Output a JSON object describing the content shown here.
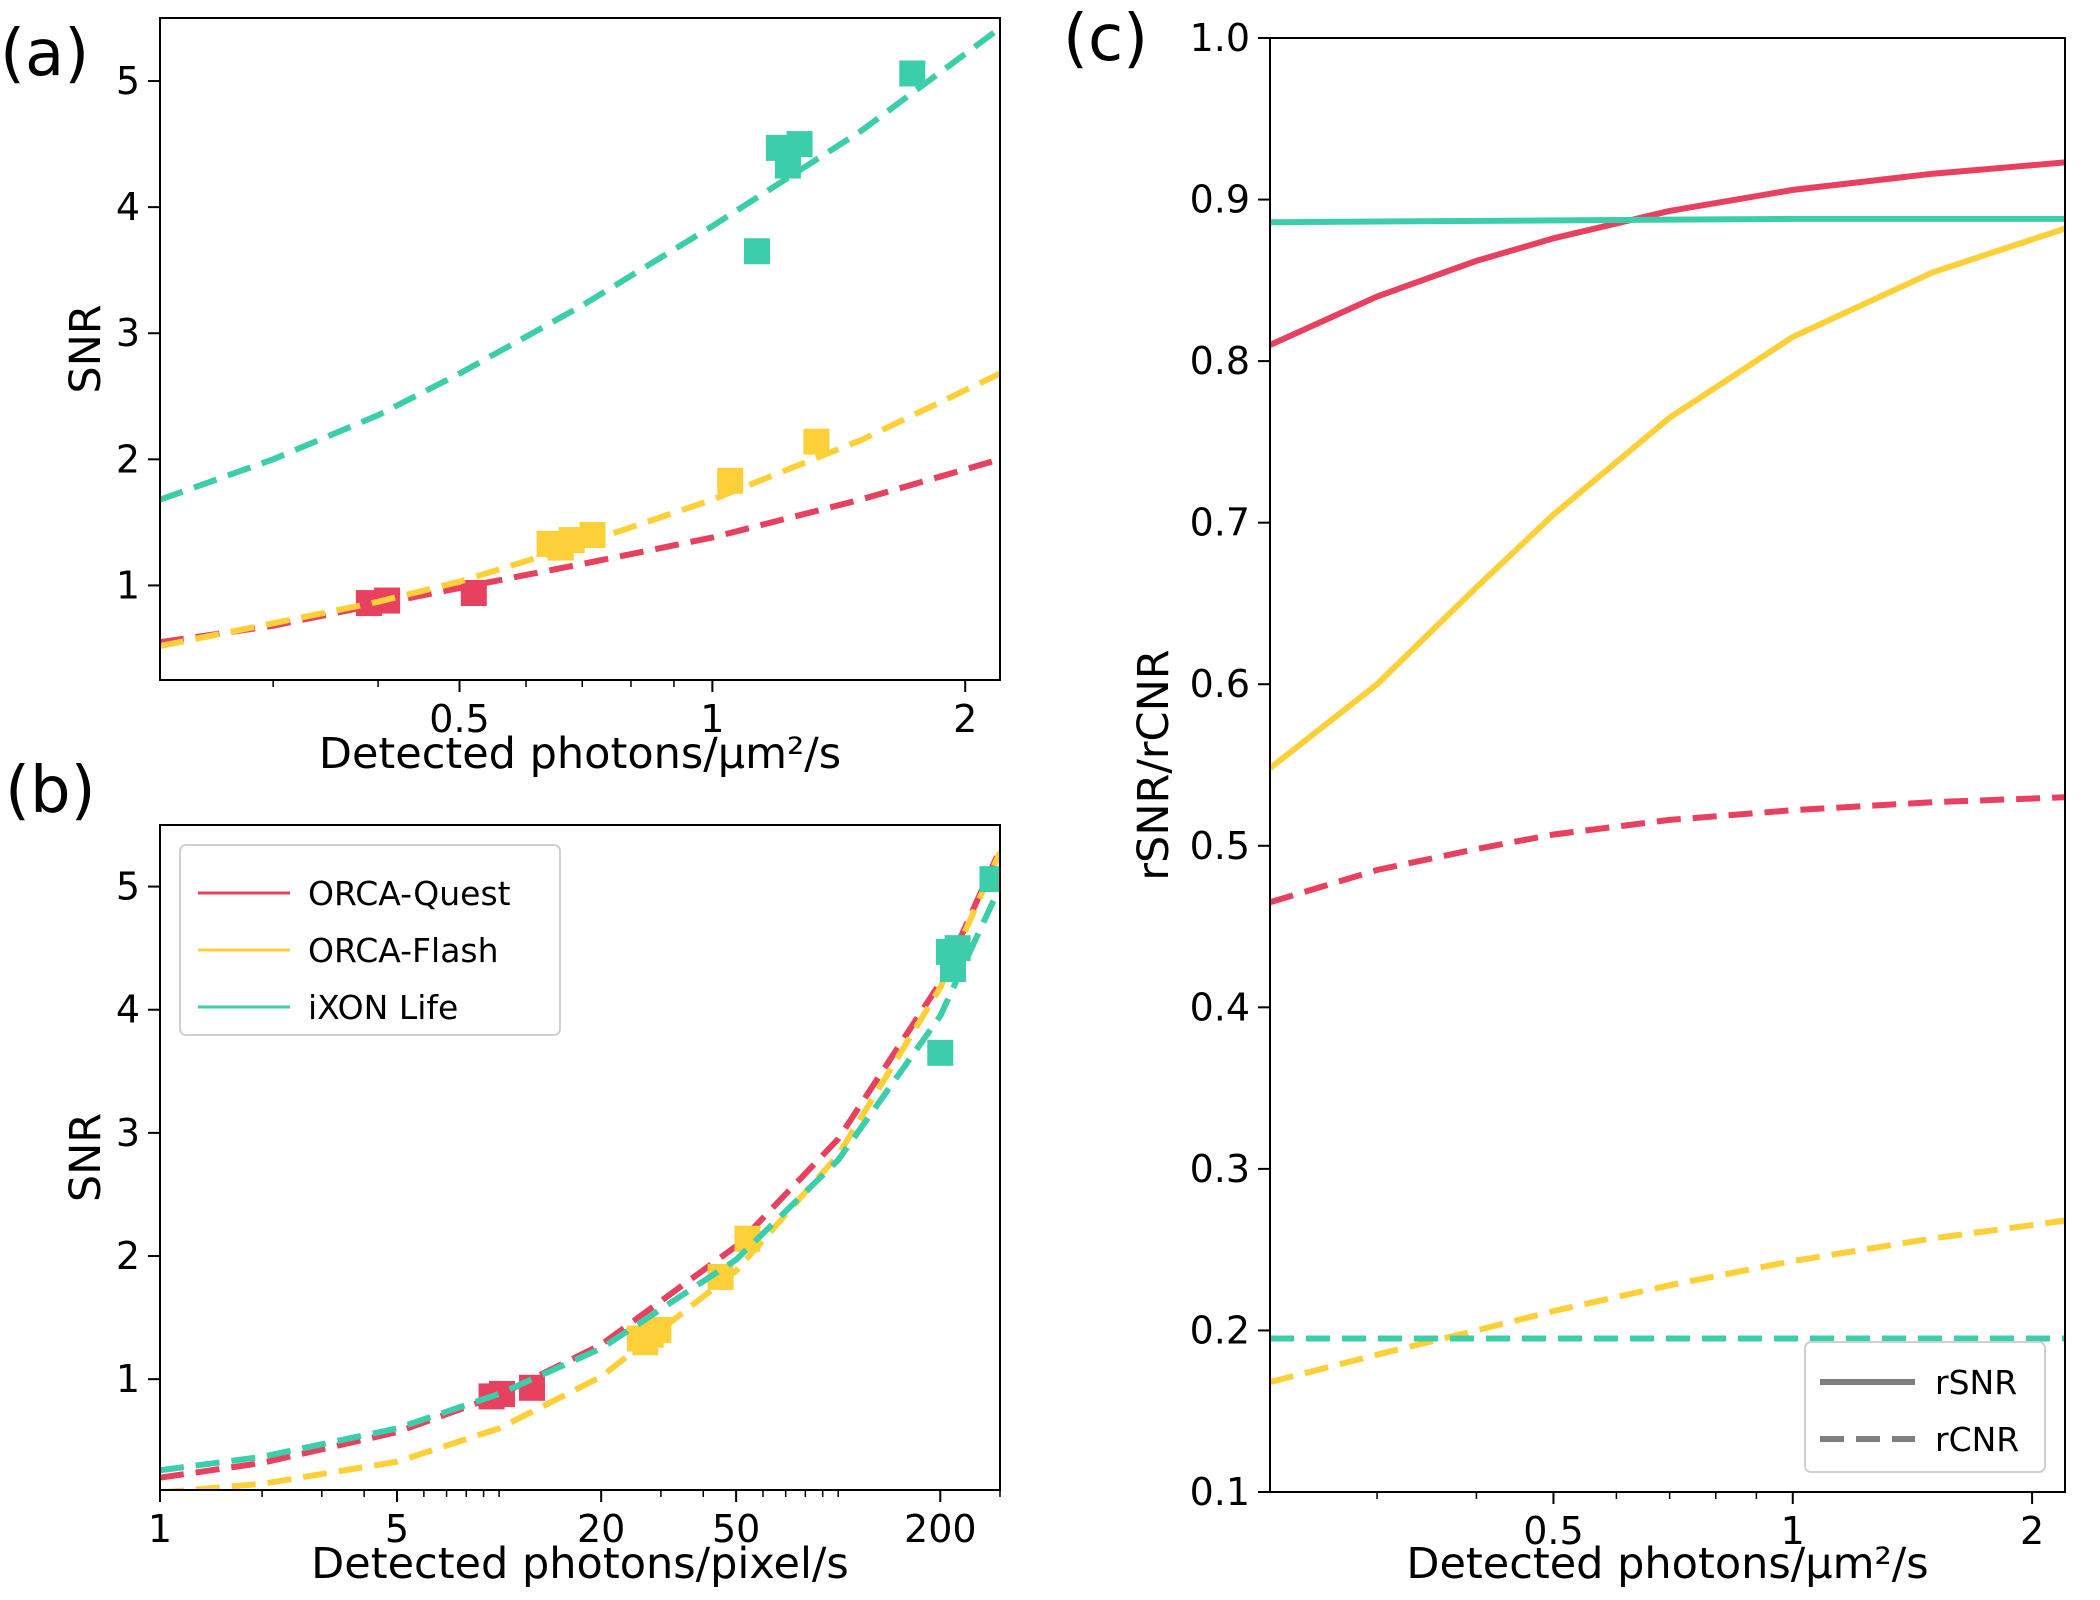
{
  "colors": {
    "quest": "#e8405f",
    "flash": "#fdd039",
    "ixon": "#3cceaa",
    "grey": "#7f7f7f"
  },
  "chart_data": [
    {
      "id": "a",
      "panel_label": "(a)",
      "type": "scatter",
      "xscale": "log",
      "xlim": [
        0.22,
        2.2
      ],
      "ylim": [
        0.25,
        5.5
      ],
      "xticks": [
        0.5,
        1,
        2
      ],
      "xtick_labels": [
        "0.5",
        "1",
        "2"
      ],
      "yticks": [
        1,
        2,
        3,
        4,
        5
      ],
      "ytick_labels": [
        "1",
        "2",
        "3",
        "4",
        "5"
      ],
      "xlabel": "Detected photons/μm²/s",
      "ylabel": "SNR",
      "series": [
        {
          "name": "ORCA-Quest",
          "color_key": "quest",
          "points": [
            [
              0.39,
              0.86
            ],
            [
              0.41,
              0.88
            ],
            [
              0.52,
              0.94
            ]
          ],
          "fit": [
            [
              0.22,
              0.55
            ],
            [
              0.3,
              0.68
            ],
            [
              0.4,
              0.85
            ],
            [
              0.5,
              0.98
            ],
            [
              0.7,
              1.17
            ],
            [
              1.0,
              1.38
            ],
            [
              1.5,
              1.68
            ],
            [
              2.2,
              2.0
            ]
          ]
        },
        {
          "name": "ORCA-Flash",
          "color_key": "flash",
          "points": [
            [
              0.64,
              1.33
            ],
            [
              0.66,
              1.3
            ],
            [
              0.68,
              1.36
            ],
            [
              0.72,
              1.4
            ],
            [
              1.05,
              1.83
            ],
            [
              1.33,
              2.14
            ]
          ],
          "fit": [
            [
              0.22,
              0.52
            ],
            [
              0.3,
              0.7
            ],
            [
              0.4,
              0.87
            ],
            [
              0.5,
              1.03
            ],
            [
              0.7,
              1.33
            ],
            [
              1.0,
              1.68
            ],
            [
              1.5,
              2.15
            ],
            [
              2.2,
              2.68
            ]
          ]
        },
        {
          "name": "iXON Life",
          "color_key": "ixon",
          "points": [
            [
              1.13,
              3.65
            ],
            [
              1.2,
              4.47
            ],
            [
              1.23,
              4.33
            ],
            [
              1.27,
              4.5
            ],
            [
              1.73,
              5.06
            ]
          ],
          "fit": [
            [
              0.22,
              1.68
            ],
            [
              0.3,
              2.0
            ],
            [
              0.4,
              2.35
            ],
            [
              0.5,
              2.68
            ],
            [
              0.7,
              3.22
            ],
            [
              1.0,
              3.85
            ],
            [
              1.5,
              4.6
            ],
            [
              2.2,
              5.42
            ]
          ]
        }
      ]
    },
    {
      "id": "b",
      "panel_label": "(b)",
      "type": "scatter",
      "xscale": "log",
      "xlim": [
        1,
        300
      ],
      "ylim": [
        0.1,
        5.5
      ],
      "xticks": [
        1,
        5,
        20,
        50,
        200
      ],
      "xtick_labels": [
        "1",
        "5",
        "20",
        "50",
        "200"
      ],
      "yticks": [
        1,
        2,
        3,
        4,
        5
      ],
      "ytick_labels": [
        "1",
        "2",
        "3",
        "4",
        "5"
      ],
      "xlabel": "Detected photons/pixel/s",
      "ylabel": "SNR",
      "legend": {
        "position": "upper-left",
        "entries": [
          "ORCA-Quest",
          "ORCA-Flash",
          "iXON Life"
        ]
      },
      "series": [
        {
          "name": "ORCA-Quest",
          "color_key": "quest",
          "points": [
            [
              9.5,
              0.86
            ],
            [
              10.2,
              0.88
            ],
            [
              12.5,
              0.93
            ]
          ],
          "fit": [
            [
              1,
              0.2
            ],
            [
              2,
              0.32
            ],
            [
              5,
              0.57
            ],
            [
              10,
              0.87
            ],
            [
              20,
              1.28
            ],
            [
              50,
              2.08
            ],
            [
              100,
              2.95
            ],
            [
              200,
              4.22
            ],
            [
              300,
              5.3
            ]
          ]
        },
        {
          "name": "ORCA-Flash",
          "color_key": "flash",
          "points": [
            [
              26,
              1.33
            ],
            [
              27,
              1.3
            ],
            [
              28,
              1.36
            ],
            [
              29.5,
              1.4
            ],
            [
              45,
              1.83
            ],
            [
              54,
              2.14
            ]
          ],
          "fit": [
            [
              1,
              0.08
            ],
            [
              2,
              0.15
            ],
            [
              5,
              0.33
            ],
            [
              10,
              0.6
            ],
            [
              20,
              1.02
            ],
            [
              50,
              1.88
            ],
            [
              100,
              2.82
            ],
            [
              200,
              4.18
            ],
            [
              300,
              5.28
            ]
          ]
        },
        {
          "name": "iXON Life",
          "color_key": "ixon",
          "points": [
            [
              200,
              3.65
            ],
            [
              212,
              4.47
            ],
            [
              218,
              4.33
            ],
            [
              225,
              4.5
            ],
            [
              285,
              5.06
            ]
          ],
          "fit": [
            [
              1,
              0.26
            ],
            [
              2,
              0.37
            ],
            [
              5,
              0.6
            ],
            [
              10,
              0.88
            ],
            [
              20,
              1.25
            ],
            [
              50,
              1.97
            ],
            [
              100,
              2.78
            ],
            [
              200,
              3.95
            ],
            [
              300,
              5.0
            ]
          ]
        }
      ]
    },
    {
      "id": "c",
      "panel_label": "(c)",
      "type": "line",
      "xscale": "log",
      "xlim": [
        0.22,
        2.2
      ],
      "ylim": [
        0.1,
        1.0
      ],
      "xticks": [
        0.5,
        1,
        2
      ],
      "xtick_labels": [
        "0.5",
        "1",
        "2"
      ],
      "yticks": [
        0.1,
        0.2,
        0.3,
        0.4,
        0.5,
        0.6,
        0.7,
        0.8,
        0.9,
        1.0
      ],
      "ytick_labels": [
        "0.1",
        "0.2",
        "0.3",
        "0.4",
        "0.5",
        "0.6",
        "0.7",
        "0.8",
        "0.9",
        "1.0"
      ],
      "xlabel": "Detected photons/μm²/s",
      "ylabel": "rSNR/rCNR",
      "legend": {
        "position": "lower-right",
        "entries": [
          "rSNR",
          "rCNR"
        ]
      },
      "series": [
        {
          "name": "ORCA-Quest rSNR",
          "color_key": "quest",
          "style": "solid",
          "points": [
            [
              0.22,
              0.81
            ],
            [
              0.3,
              0.84
            ],
            [
              0.4,
              0.862
            ],
            [
              0.5,
              0.876
            ],
            [
              0.7,
              0.893
            ],
            [
              1.0,
              0.906
            ],
            [
              1.5,
              0.916
            ],
            [
              2.2,
              0.923
            ]
          ]
        },
        {
          "name": "ORCA-Flash rSNR",
          "color_key": "flash",
          "style": "solid",
          "points": [
            [
              0.22,
              0.548
            ],
            [
              0.3,
              0.6
            ],
            [
              0.4,
              0.66
            ],
            [
              0.5,
              0.705
            ],
            [
              0.7,
              0.765
            ],
            [
              1.0,
              0.815
            ],
            [
              1.5,
              0.855
            ],
            [
              2.2,
              0.882
            ]
          ]
        },
        {
          "name": "iXON Life rSNR",
          "color_key": "ixon",
          "style": "solid",
          "points": [
            [
              0.22,
              0.886
            ],
            [
              1.0,
              0.888
            ],
            [
              2.2,
              0.888
            ]
          ]
        },
        {
          "name": "ORCA-Quest rCNR",
          "color_key": "quest",
          "style": "dashed",
          "points": [
            [
              0.22,
              0.465
            ],
            [
              0.3,
              0.485
            ],
            [
              0.4,
              0.498
            ],
            [
              0.5,
              0.507
            ],
            [
              0.7,
              0.516
            ],
            [
              1.0,
              0.522
            ],
            [
              1.5,
              0.527
            ],
            [
              2.2,
              0.53
            ]
          ]
        },
        {
          "name": "ORCA-Flash rCNR",
          "color_key": "flash",
          "style": "dashed",
          "points": [
            [
              0.22,
              0.168
            ],
            [
              0.3,
              0.185
            ],
            [
              0.4,
              0.2
            ],
            [
              0.5,
              0.212
            ],
            [
              0.7,
              0.228
            ],
            [
              1.0,
              0.243
            ],
            [
              1.5,
              0.257
            ],
            [
              2.2,
              0.268
            ]
          ]
        },
        {
          "name": "iXON Life rCNR",
          "color_key": "ixon",
          "style": "dashed",
          "points": [
            [
              0.22,
              0.195
            ],
            [
              1.0,
              0.195
            ],
            [
              2.2,
              0.195
            ]
          ]
        }
      ]
    }
  ]
}
